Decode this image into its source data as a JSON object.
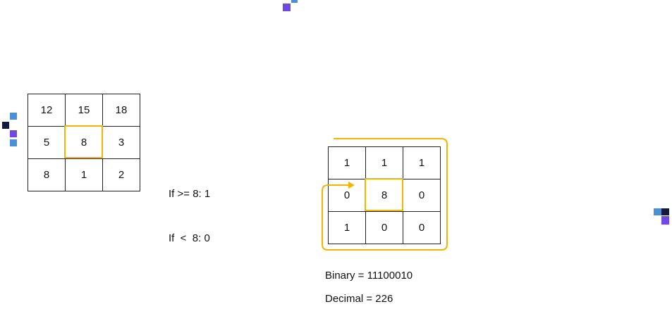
{
  "colors": {
    "highlight": "#f4b400",
    "light_blue": "#4a90d9",
    "purple": "#7048e8",
    "navy": "#141a3d"
  },
  "input_grid": {
    "rows": [
      [
        "12",
        "15",
        "18"
      ],
      [
        "5",
        "8",
        "3"
      ],
      [
        "8",
        "1",
        "2"
      ]
    ],
    "center": "8"
  },
  "threshold_rule": {
    "line1": "If >= 8: 1",
    "line2": "If  <  8: 0"
  },
  "binary_grid": {
    "rows": [
      [
        "1",
        "1",
        "1"
      ],
      [
        "0",
        "8",
        "0"
      ],
      [
        "1",
        "0",
        "0"
      ]
    ]
  },
  "result": {
    "binary": "Binary = 11100010",
    "decimal": "Decimal = 226"
  }
}
